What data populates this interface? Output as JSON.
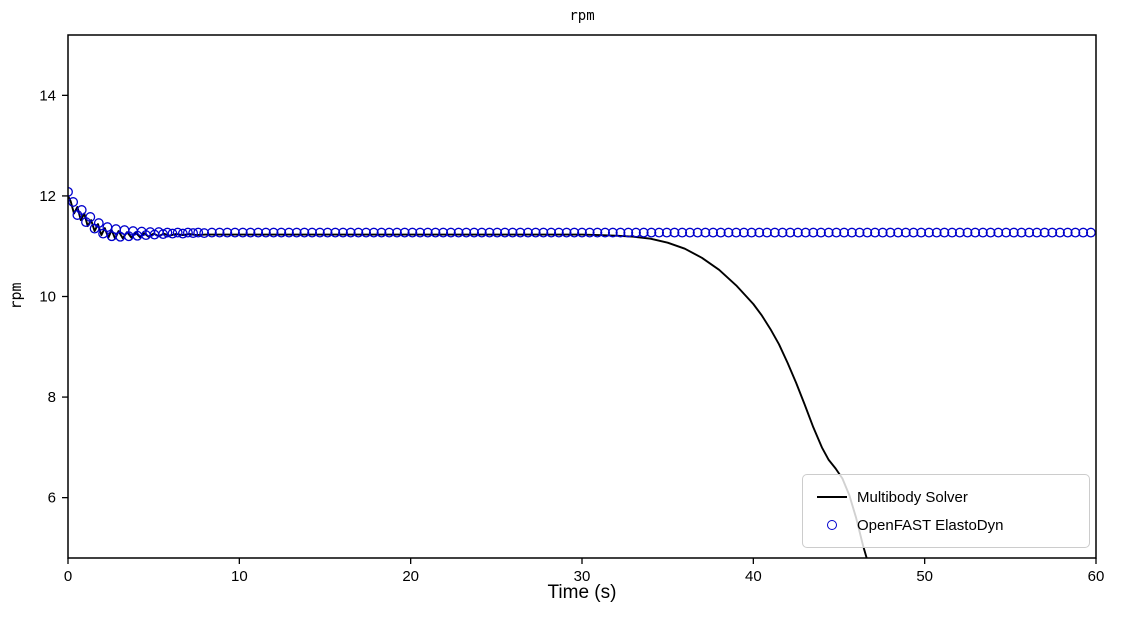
{
  "figure": {
    "title": "rpm",
    "xlabel": "Time (s)",
    "ylabel": "rpm",
    "background_color": "#ffffff",
    "spine_color": "#000000"
  },
  "chart_data": {
    "type": "line",
    "title": "rpm",
    "xlabel": "Time (s)",
    "ylabel": "rpm",
    "xlim": [
      0,
      60
    ],
    "ylim": [
      4.8,
      15.2
    ],
    "xticks": [
      0,
      10,
      20,
      30,
      40,
      50,
      60
    ],
    "yticks": [
      6,
      8,
      10,
      12,
      14
    ],
    "grid": false,
    "legend": {
      "position": "lower right",
      "entries": [
        "Multibody Solver",
        "OpenFAST ElastoDyn"
      ]
    },
    "series": [
      {
        "name": "Multibody Solver",
        "type": "line",
        "color": "#000000",
        "linewidth": 1.9,
        "points": [
          [
            0,
            12.0
          ],
          [
            0.15,
            11.9
          ],
          [
            0.35,
            11.65
          ],
          [
            0.55,
            11.78
          ],
          [
            0.75,
            11.52
          ],
          [
            0.95,
            11.65
          ],
          [
            1.15,
            11.4
          ],
          [
            1.35,
            11.52
          ],
          [
            1.55,
            11.3
          ],
          [
            1.75,
            11.44
          ],
          [
            1.95,
            11.22
          ],
          [
            2.15,
            11.36
          ],
          [
            2.35,
            11.17
          ],
          [
            2.55,
            11.32
          ],
          [
            2.75,
            11.15
          ],
          [
            2.95,
            11.3
          ],
          [
            3.2,
            11.16
          ],
          [
            3.45,
            11.28
          ],
          [
            3.7,
            11.17
          ],
          [
            3.95,
            11.27
          ],
          [
            4.2,
            11.18
          ],
          [
            4.45,
            11.26
          ],
          [
            4.7,
            11.19
          ],
          [
            5.0,
            11.25
          ],
          [
            5.3,
            11.2
          ],
          [
            5.6,
            11.25
          ],
          [
            5.9,
            11.21
          ],
          [
            6.3,
            11.24
          ],
          [
            6.7,
            11.22
          ],
          [
            7.1,
            11.24
          ],
          [
            7.5,
            11.22
          ],
          [
            8,
            11.23
          ],
          [
            9,
            11.23
          ],
          [
            10,
            11.23
          ],
          [
            12,
            11.23
          ],
          [
            14,
            11.23
          ],
          [
            16,
            11.23
          ],
          [
            18,
            11.23
          ],
          [
            20,
            11.23
          ],
          [
            22,
            11.23
          ],
          [
            24,
            11.23
          ],
          [
            26,
            11.23
          ],
          [
            28,
            11.23
          ],
          [
            30,
            11.23
          ],
          [
            31,
            11.22
          ],
          [
            32,
            11.21
          ],
          [
            33,
            11.19
          ],
          [
            34,
            11.15
          ],
          [
            35,
            11.07
          ],
          [
            36,
            10.95
          ],
          [
            37,
            10.77
          ],
          [
            38,
            10.53
          ],
          [
            39,
            10.22
          ],
          [
            40,
            9.85
          ],
          [
            40.5,
            9.62
          ],
          [
            41,
            9.35
          ],
          [
            41.5,
            9.05
          ],
          [
            42,
            8.68
          ],
          [
            42.5,
            8.28
          ],
          [
            43,
            7.85
          ],
          [
            43.5,
            7.4
          ],
          [
            44,
            7.0
          ],
          [
            44.4,
            6.75
          ],
          [
            44.8,
            6.58
          ],
          [
            45.2,
            6.38
          ],
          [
            45.6,
            6.05
          ],
          [
            46,
            5.6
          ],
          [
            46.4,
            5.05
          ],
          [
            46.7,
            4.7
          ]
        ]
      },
      {
        "name": "OpenFAST ElastoDyn",
        "type": "scatter",
        "marker": "open-circle",
        "color": "#0000cd",
        "marker_radius": 4.3,
        "points": [
          [
            0,
            12.08
          ],
          [
            0.3,
            11.88
          ],
          [
            0.55,
            11.62
          ],
          [
            0.8,
            11.72
          ],
          [
            1.05,
            11.48
          ],
          [
            1.3,
            11.58
          ],
          [
            1.55,
            11.35
          ],
          [
            1.8,
            11.46
          ],
          [
            2.05,
            11.25
          ],
          [
            2.3,
            11.38
          ],
          [
            2.55,
            11.2
          ],
          [
            2.8,
            11.34
          ],
          [
            3.05,
            11.19
          ],
          [
            3.3,
            11.32
          ],
          [
            3.55,
            11.2
          ],
          [
            3.8,
            11.3
          ],
          [
            4.05,
            11.21
          ],
          [
            4.3,
            11.29
          ],
          [
            4.55,
            11.22
          ],
          [
            4.8,
            11.28
          ],
          [
            5.05,
            11.23
          ],
          [
            5.3,
            11.28
          ],
          [
            5.55,
            11.24
          ],
          [
            5.8,
            11.27
          ],
          [
            6.1,
            11.25
          ],
          [
            6.4,
            11.27
          ],
          [
            6.7,
            11.25
          ],
          [
            7.0,
            11.27
          ],
          [
            7.3,
            11.26
          ],
          [
            7.6,
            11.27
          ],
          [
            7.95,
            11.26
          ]
        ],
        "flat_tail": {
          "from": 8.4,
          "to": 60,
          "step": 0.45,
          "value": 11.27
        }
      }
    ]
  },
  "legend": {
    "items": [
      {
        "label": "Multibody Solver"
      },
      {
        "label": "OpenFAST ElastoDyn"
      }
    ]
  }
}
